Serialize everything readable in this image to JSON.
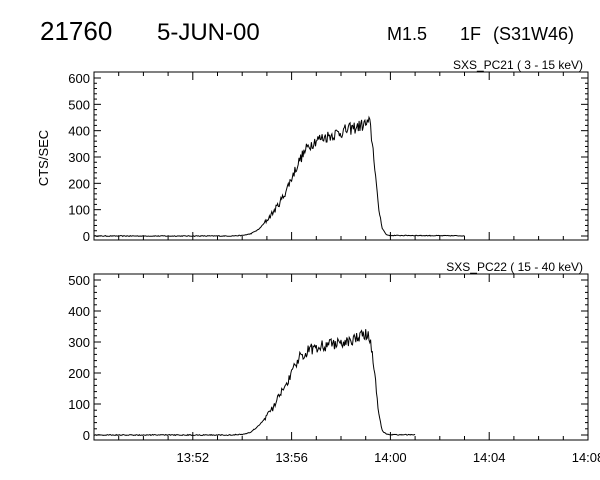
{
  "header": {
    "event_number": "21760",
    "date": "5-JUN-00",
    "goes_class": "M1.5",
    "optical_class": "1F",
    "location": "(S31W46)"
  },
  "chart_data": [
    {
      "type": "line",
      "title": "SXS_PC21  (  3 - 15 keV)",
      "ylabel": "CTS/SEC",
      "xlabel": "",
      "ylim": [
        0,
        600
      ],
      "xlim": [
        "13:48",
        "14:08"
      ],
      "yticks": [
        "0",
        "100",
        "200",
        "300",
        "400",
        "500",
        "600"
      ],
      "xticks": [
        "13:52",
        "13:56",
        "14:00",
        "14:04",
        "14:08"
      ],
      "grid": false,
      "series": [
        {
          "x": [
            "13:48:00",
            "13:53:30",
            "13:54:00",
            "13:54:20",
            "13:54:40",
            "13:55:00",
            "13:55:20",
            "13:55:40",
            "13:56:00",
            "13:56:20",
            "13:56:40",
            "13:57:00",
            "13:57:20",
            "13:57:40",
            "13:58:00",
            "13:58:20",
            "13:58:40",
            "13:59:00",
            "13:59:10",
            "13:59:20",
            "13:59:30",
            "13:59:40",
            "13:59:50",
            "14:00:00",
            "14:01:00",
            "14:02:00",
            "14:03:00"
          ],
          "y": [
            0,
            0,
            2,
            8,
            25,
            60,
            100,
            150,
            220,
            290,
            340,
            365,
            375,
            385,
            395,
            405,
            415,
            425,
            430,
            300,
            120,
            30,
            5,
            2,
            2,
            1,
            1
          ]
        }
      ]
    },
    {
      "type": "line",
      "title": "SXS_PC22  ( 15 - 40 keV)",
      "ylabel": "",
      "xlabel": "",
      "ylim": [
        0,
        500
      ],
      "xlim": [
        "13:48",
        "14:08"
      ],
      "yticks": [
        "0",
        "100",
        "200",
        "300",
        "400",
        "500"
      ],
      "xticks": [
        "13:52",
        "13:56",
        "14:00",
        "14:04",
        "14:08"
      ],
      "grid": false,
      "series": [
        {
          "x": [
            "13:48:00",
            "13:53:30",
            "13:54:00",
            "13:54:20",
            "13:54:40",
            "13:55:00",
            "13:55:20",
            "13:55:40",
            "13:56:00",
            "13:56:20",
            "13:56:40",
            "13:57:00",
            "13:57:20",
            "13:57:40",
            "13:58:00",
            "13:58:20",
            "13:58:40",
            "13:59:00",
            "13:59:10",
            "13:59:20",
            "13:59:30",
            "13:59:40",
            "13:59:50",
            "14:00:00",
            "14:00:30",
            "14:01:00"
          ],
          "y": [
            0,
            0,
            2,
            8,
            30,
            60,
            100,
            150,
            200,
            250,
            275,
            285,
            290,
            295,
            300,
            305,
            315,
            320,
            310,
            220,
            80,
            15,
            2,
            1,
            1,
            1
          ]
        }
      ]
    }
  ]
}
